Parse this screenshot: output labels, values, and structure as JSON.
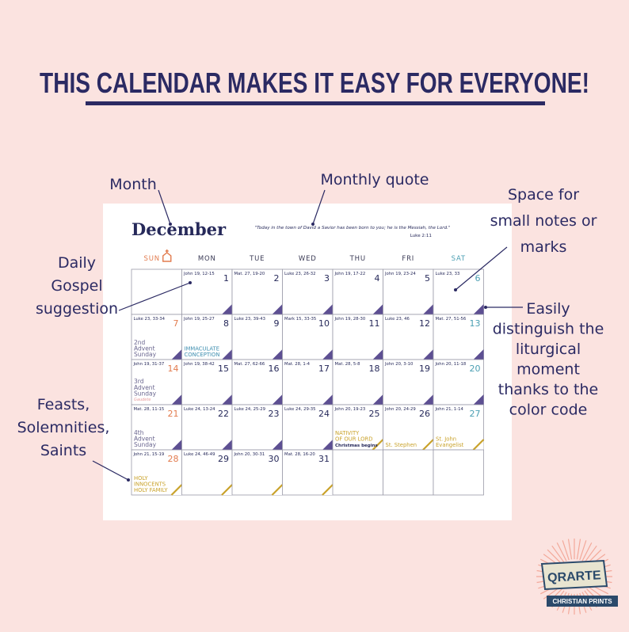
{
  "headline": "THIS CALENDAR MAKES IT EASY FOR EVERYONE!",
  "callouts": {
    "month": "Month",
    "quote": "Monthly quote",
    "notes": [
      "Space for",
      "small notes or",
      "marks"
    ],
    "gospel": [
      "Daily",
      "Gospel",
      "suggestion"
    ],
    "color_code": [
      "Easily",
      "distinguish the",
      "liturgical",
      "moment",
      "thanks to the",
      "color code"
    ],
    "feasts": [
      "Feasts,",
      "Solemnities,",
      "Saints"
    ]
  },
  "calendar": {
    "month": "December",
    "quote": "\"Today in the town of David a Savior has been born to you; he is the Messiah, the Lord.\"",
    "quote_ref": "Luke 2:11",
    "weekdays": [
      {
        "label": "SUN",
        "color": "#e27b4e"
      },
      {
        "label": "MON"
      },
      {
        "label": "TUE"
      },
      {
        "label": "WED"
      },
      {
        "label": "THU"
      },
      {
        "label": "FRI"
      },
      {
        "label": "SAT",
        "color": "#4b9fb3"
      }
    ],
    "weeks": [
      [
        null,
        {
          "reading": "John 19, 12-15",
          "day": "1",
          "corner": {
            "fill": "#5d4f92"
          }
        },
        {
          "reading": "Mat. 27, 19-20",
          "day": "2",
          "corner": {
            "fill": "#5d4f92"
          }
        },
        {
          "reading": "Luke 23, 26-32",
          "day": "3",
          "corner": {
            "fill": "#5d4f92"
          }
        },
        {
          "reading": "John 19, 17-22",
          "day": "4",
          "corner": {
            "fill": "#5d4f92"
          }
        },
        {
          "reading": "John 19, 23-24",
          "day": "5",
          "corner": {
            "fill": "#5d4f92"
          }
        },
        {
          "reading": "Luke 23, 33",
          "day": "6",
          "corner": {
            "fill": "#5d4f92"
          }
        }
      ],
      [
        {
          "reading": "Luke 23, 33-34",
          "day": "7",
          "label": [
            "2nd",
            "Advent",
            "Sunday"
          ],
          "label_color": "#6b6790",
          "corner": {
            "fill": "#5d4f92"
          }
        },
        {
          "reading": "John 19, 25-27",
          "day": "8",
          "label": [
            "IMMACULATE",
            "CONCEPTION"
          ],
          "label_color": "#3f8fb0",
          "corner": {
            "fill": "#5d4f92"
          }
        },
        {
          "reading": "Luke 23, 39-43",
          "day": "9",
          "corner": {
            "fill": "#5d4f92"
          }
        },
        {
          "reading": "Mark 15, 33-35",
          "day": "10",
          "corner": {
            "fill": "#5d4f92"
          }
        },
        {
          "reading": "John 19, 28-30",
          "day": "11",
          "corner": {
            "fill": "#5d4f92"
          }
        },
        {
          "reading": "Luke 23, 46",
          "day": "12",
          "corner": {
            "fill": "#5d4f92"
          }
        },
        {
          "reading": "Mat. 27, 51-56",
          "day": "13",
          "corner": {
            "fill": "#5d4f92"
          }
        }
      ],
      [
        {
          "reading": "John 19, 31-37",
          "day": "14",
          "label": [
            "3rd",
            "Advent",
            "Sunday"
          ],
          "sublabel": "Gaudete",
          "label_color": "#6b6790",
          "corner": {
            "fill": "#5d4f92"
          }
        },
        {
          "reading": "John 19, 38-42",
          "day": "15",
          "corner": {
            "fill": "#5d4f92"
          }
        },
        {
          "reading": "Mat. 27, 62-66",
          "day": "16",
          "corner": {
            "fill": "#5d4f92"
          }
        },
        {
          "reading": "Mat. 28, 1-4",
          "day": "17",
          "corner": {
            "fill": "#5d4f92"
          }
        },
        {
          "reading": "Mat. 28, 5-8",
          "day": "18",
          "corner": {
            "fill": "#5d4f92"
          }
        },
        {
          "reading": "John 20, 3-10",
          "day": "19",
          "corner": {
            "fill": "#5d4f92"
          }
        },
        {
          "reading": "John 20, 11-18",
          "day": "20",
          "corner": {
            "fill": "#5d4f92"
          }
        }
      ],
      [
        {
          "reading": "Mat. 28, 11-15",
          "day": "21",
          "label": [
            "4th",
            "Advent",
            "Sunday"
          ],
          "label_color": "#6b6790",
          "corner": {
            "fill": "#5d4f92"
          }
        },
        {
          "reading": "Luke 24, 13-24",
          "day": "22",
          "corner": {
            "fill": "#5d4f92"
          }
        },
        {
          "reading": "Luke 24, 25-29",
          "day": "23",
          "corner": {
            "fill": "#5d4f92"
          }
        },
        {
          "reading": "Luke 24, 29-35",
          "day": "24",
          "corner": {
            "fill": "#5d4f92"
          }
        },
        {
          "reading": "John 20, 19-23",
          "day": "25",
          "label": [
            "NATIVITY",
            "OF OUR LORD"
          ],
          "sublabel": "Christmas begins",
          "label_color": "#c9a22a",
          "corner": {
            "fill": "#ffffff",
            "stroke": "#c9a22a"
          }
        },
        {
          "reading": "John 20, 24-29",
          "day": "26",
          "label": [
            "St. Stephen"
          ],
          "label_color": "#c9a22a",
          "corner": {
            "fill": "#ffffff",
            "stroke": "#c9a22a"
          }
        },
        {
          "reading": "John 21, 1-14",
          "day": "27",
          "label": [
            "St. John",
            "Evangelist"
          ],
          "label_color": "#c9a22a",
          "corner": {
            "fill": "#ffffff",
            "stroke": "#c9a22a"
          }
        }
      ],
      [
        {
          "reading": "John 21, 15-19",
          "day": "28",
          "label": [
            "HOLY",
            "INNOCENTS",
            "HOLY FAMILY"
          ],
          "label_color": "#c9a22a",
          "corner": {
            "fill": "#ffffff",
            "stroke": "#c9a22a"
          }
        },
        {
          "reading": "Luke 24, 46-49",
          "day": "29",
          "corner": {
            "fill": "#ffffff",
            "stroke": "#c9a22a"
          }
        },
        {
          "reading": "John 20, 30-31",
          "day": "30",
          "corner": {
            "fill": "#ffffff",
            "stroke": "#c9a22a"
          }
        },
        {
          "reading": "Mat. 28, 16-20",
          "day": "31",
          "corner": {
            "fill": "#ffffff",
            "stroke": "#c9a22a"
          }
        },
        null,
        null,
        null
      ]
    ]
  },
  "logo": {
    "name": "QRARTE",
    "tagline": "CHRISTIAN PRINTS"
  }
}
